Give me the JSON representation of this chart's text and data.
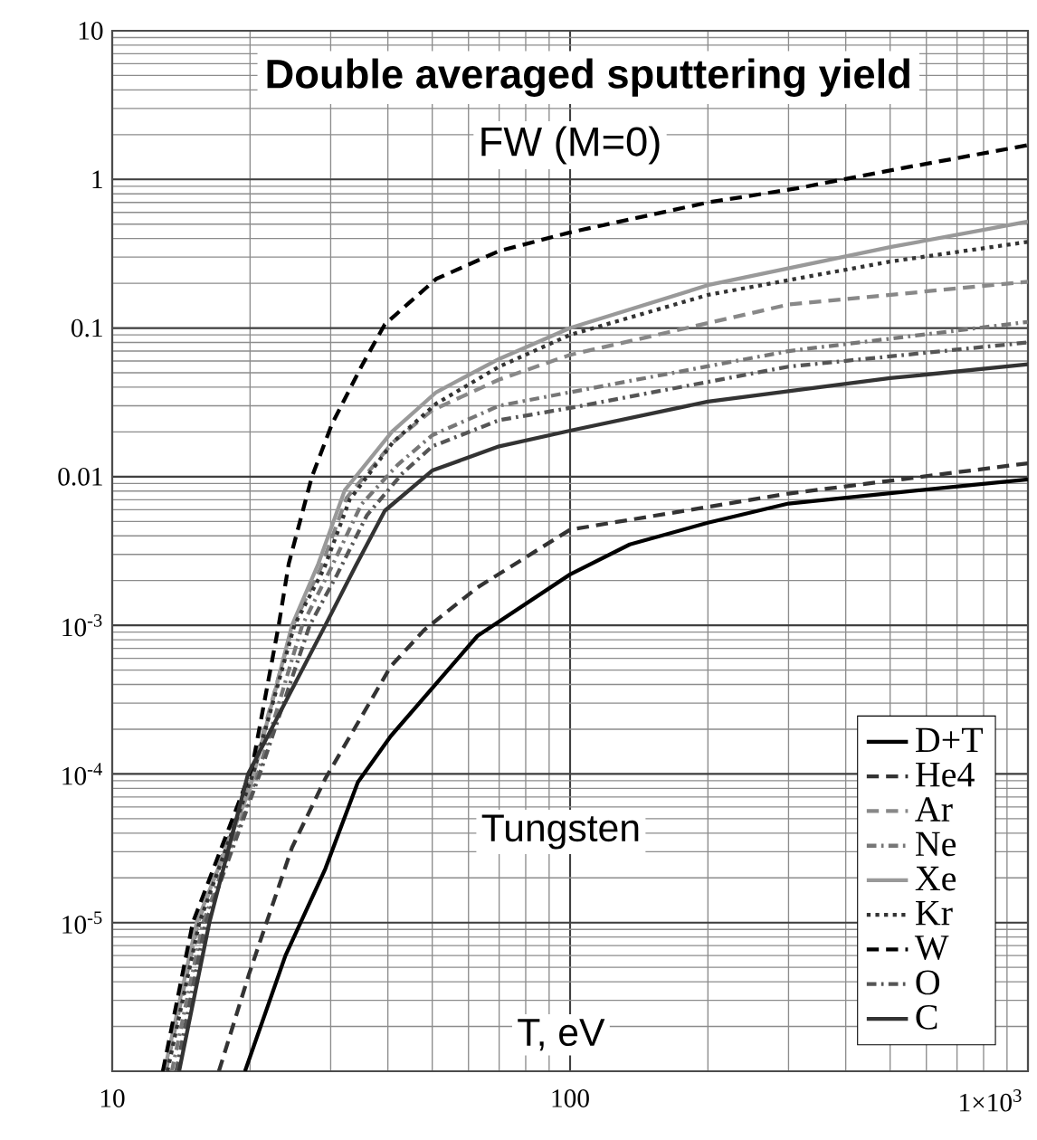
{
  "chart_data": {
    "type": "line",
    "title": "Double averaged sputtering yield",
    "subtitle": "FW  (M=0)",
    "xlabel": "T, eV",
    "annotations": [
      "Tungsten"
    ],
    "log": "xy",
    "grid": true,
    "legend": "bottom right",
    "xlim": [
      10,
      1000
    ],
    "ylim": [
      1e-06,
      10
    ],
    "xticks": [
      10,
      100,
      {
        "value": 1000,
        "label": "1×10$^{3}$"
      }
    ],
    "yticks": [
      {
        "value": 1e-06,
        "label": null
      },
      {
        "value": 1e-05,
        "label": "10$^{-5}$"
      },
      {
        "value": 0.0001,
        "label": "10$^{-4}$"
      },
      {
        "value": 0.001,
        "label": "10$^{-3}$"
      },
      0.01,
      0.1,
      1,
      10
    ],
    "series": [
      {
        "name": "D+T",
        "color": "#000000",
        "line_style": "solid",
        "x": [
          19.5,
          23.9,
          29.2,
          34.4,
          40.6,
          62.8,
          100,
          135,
          200,
          300,
          1000
        ],
        "values": [
          1e-06,
          6e-06,
          2.3e-05,
          8.8e-05,
          0.00018,
          0.00085,
          0.0022,
          0.0035,
          0.0049,
          0.0066,
          0.0096
        ]
      },
      {
        "name": "He4",
        "color": "#333333",
        "line_style": "dashed",
        "x": [
          17.1,
          19.9,
          24.7,
          29.2,
          40.6,
          48,
          62.8,
          100,
          300,
          1000
        ],
        "values": [
          1e-06,
          4.5e-06,
          3.2e-05,
          9.3e-05,
          0.00053,
          0.00093,
          0.0018,
          0.0044,
          0.0077,
          0.0123
        ]
      },
      {
        "name": "Ar",
        "color": "#888888",
        "line_style": "dashed",
        "x": [
          13.1,
          15.4,
          20.2,
          24.8,
          28.5,
          32.5,
          41,
          50,
          70,
          100,
          300,
          1000
        ],
        "values": [
          1e-06,
          1e-05,
          0.0001,
          0.001,
          0.0024,
          0.0072,
          0.017,
          0.028,
          0.045,
          0.066,
          0.144,
          0.205
        ]
      },
      {
        "name": "Ne",
        "color": "#777777",
        "line_style": "dashdot",
        "x": [
          13.5,
          15.8,
          20.8,
          26,
          30,
          35,
          42,
          50,
          70,
          100,
          300,
          1000
        ],
        "values": [
          1e-06,
          1e-05,
          0.0001,
          0.001,
          0.0024,
          0.0065,
          0.012,
          0.019,
          0.03,
          0.037,
          0.07,
          0.11
        ]
      },
      {
        "name": "Xe",
        "color": "#999999",
        "line_style": "solid",
        "x": [
          13,
          15.3,
          20,
          24.7,
          28.2,
          32.2,
          40.8,
          51,
          70,
          100,
          202,
          500,
          1000
        ],
        "values": [
          1e-06,
          1e-05,
          8e-05,
          0.001,
          0.0026,
          0.0081,
          0.02,
          0.037,
          0.062,
          0.1,
          0.196,
          0.35,
          0.52
        ]
      },
      {
        "name": "Kr",
        "color": "#333333",
        "line_style": "dotted",
        "x": [
          13.2,
          15.5,
          20.3,
          25,
          29,
          33,
          41,
          51,
          70,
          100,
          200,
          500,
          1000
        ],
        "values": [
          1e-06,
          1e-05,
          0.0001,
          0.001,
          0.0024,
          0.007,
          0.017,
          0.031,
          0.055,
          0.09,
          0.167,
          0.28,
          0.38
        ]
      },
      {
        "name": "W",
        "color": "#000000",
        "line_style": "dashed",
        "x": [
          12.9,
          15,
          20.2,
          23.1,
          24.3,
          27.3,
          30.2,
          35,
          39.4,
          51,
          70,
          100,
          200,
          313,
          500,
          1000
        ],
        "values": [
          1e-06,
          1e-05,
          0.00011,
          0.001,
          0.0026,
          0.01,
          0.0226,
          0.055,
          0.106,
          0.214,
          0.33,
          0.44,
          0.7,
          0.87,
          1.15,
          1.7
        ]
      },
      {
        "name": "O",
        "color": "#555555",
        "line_style": "dashdot",
        "x": [
          13.8,
          16,
          21,
          27,
          31,
          36,
          43,
          50,
          70,
          100,
          300,
          1000
        ],
        "values": [
          1e-06,
          1e-05,
          0.0001,
          0.001,
          0.0022,
          0.0055,
          0.0105,
          0.016,
          0.024,
          0.029,
          0.055,
          0.08
        ]
      },
      {
        "name": "C",
        "color": "#333333",
        "line_style": "solid",
        "x": [
          14,
          16.3,
          19.8,
          29.2,
          34,
          39.4,
          50,
          70,
          100,
          200,
          500,
          1000
        ],
        "values": [
          1e-06,
          1e-05,
          0.0001,
          0.001,
          0.0025,
          0.0059,
          0.011,
          0.016,
          0.0204,
          0.032,
          0.046,
          0.057
        ]
      }
    ]
  }
}
